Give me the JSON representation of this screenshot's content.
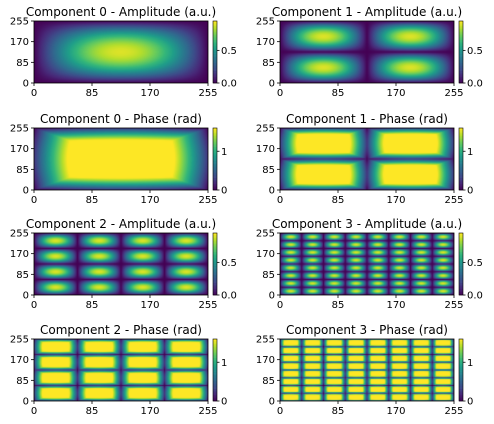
{
  "chart_data": [
    {
      "type": "heatmap",
      "title": "Component 0 - Amplitude (a.u.)",
      "pattern": {
        "kind": "amplitude",
        "n": 0
      },
      "x_ticks": [
        "0",
        "85",
        "170",
        "255"
      ],
      "y_ticks": [
        "0",
        "85",
        "170",
        "255"
      ],
      "xlim": [
        0,
        255
      ],
      "ylim": [
        0,
        255
      ],
      "colormap": "viridis",
      "colorbar": {
        "range": [
          0,
          0.95
        ],
        "ticks": [
          {
            "value": 0,
            "label": "0.0"
          },
          {
            "value": 0.5,
            "label": "0.5"
          }
        ]
      }
    },
    {
      "type": "heatmap",
      "title": "Component 1 - Amplitude (a.u.)",
      "pattern": {
        "kind": "amplitude",
        "n": 1
      },
      "x_ticks": [
        "0",
        "85",
        "170",
        "255"
      ],
      "y_ticks": [
        "0",
        "85",
        "170",
        "255"
      ],
      "xlim": [
        0,
        255
      ],
      "ylim": [
        0,
        255
      ],
      "colormap": "viridis",
      "colorbar": {
        "range": [
          0,
          0.95
        ],
        "ticks": [
          {
            "value": 0,
            "label": "0.0"
          },
          {
            "value": 0.5,
            "label": "0.5"
          }
        ]
      }
    },
    {
      "type": "heatmap",
      "title": "Component 0 - Phase (rad)",
      "pattern": {
        "kind": "phase",
        "n": 0
      },
      "x_ticks": [
        "0",
        "85",
        "170",
        "255"
      ],
      "y_ticks": [
        "0",
        "85",
        "170",
        "255"
      ],
      "xlim": [
        0,
        255
      ],
      "ylim": [
        0,
        255
      ],
      "colormap": "viridis",
      "colorbar": {
        "range": [
          0,
          1.6
        ],
        "ticks": [
          {
            "value": 0,
            "label": "0"
          },
          {
            "value": 1,
            "label": "1"
          }
        ]
      }
    },
    {
      "type": "heatmap",
      "title": "Component 1 - Phase (rad)",
      "pattern": {
        "kind": "phase",
        "n": 1
      },
      "x_ticks": [
        "0",
        "85",
        "170",
        "255"
      ],
      "y_ticks": [
        "0",
        "85",
        "170",
        "255"
      ],
      "xlim": [
        0,
        255
      ],
      "ylim": [
        0,
        255
      ],
      "colormap": "viridis",
      "colorbar": {
        "range": [
          0,
          1.6
        ],
        "ticks": [
          {
            "value": 0,
            "label": "0"
          },
          {
            "value": 1,
            "label": "1"
          }
        ]
      }
    },
    {
      "type": "heatmap",
      "title": "Component 2 - Amplitude (a.u.)",
      "pattern": {
        "kind": "amplitude",
        "n": 2
      },
      "x_ticks": [
        "0",
        "85",
        "170",
        "255"
      ],
      "y_ticks": [
        "0",
        "85",
        "170",
        "255"
      ],
      "xlim": [
        0,
        255
      ],
      "ylim": [
        0,
        255
      ],
      "colormap": "viridis",
      "colorbar": {
        "range": [
          0,
          0.95
        ],
        "ticks": [
          {
            "value": 0,
            "label": "0.0"
          },
          {
            "value": 0.5,
            "label": "0.5"
          }
        ]
      }
    },
    {
      "type": "heatmap",
      "title": "Component 3 - Amplitude (a.u.)",
      "pattern": {
        "kind": "amplitude",
        "n": 3
      },
      "x_ticks": [
        "0",
        "85",
        "170",
        "255"
      ],
      "y_ticks": [
        "0",
        "85",
        "170",
        "255"
      ],
      "xlim": [
        0,
        255
      ],
      "ylim": [
        0,
        255
      ],
      "colormap": "viridis",
      "colorbar": {
        "range": [
          0,
          0.95
        ],
        "ticks": [
          {
            "value": 0,
            "label": "0.0"
          },
          {
            "value": 0.5,
            "label": "0.5"
          }
        ]
      }
    },
    {
      "type": "heatmap",
      "title": "Component 2 - Phase (rad)",
      "pattern": {
        "kind": "phase",
        "n": 2
      },
      "x_ticks": [
        "0",
        "85",
        "170",
        "255"
      ],
      "y_ticks": [
        "0",
        "85",
        "170",
        "255"
      ],
      "xlim": [
        0,
        255
      ],
      "ylim": [
        0,
        255
      ],
      "colormap": "viridis",
      "colorbar": {
        "range": [
          0,
          1.6
        ],
        "ticks": [
          {
            "value": 0,
            "label": "0"
          },
          {
            "value": 1,
            "label": "1"
          }
        ]
      }
    },
    {
      "type": "heatmap",
      "title": "Component 3 - Phase (rad)",
      "pattern": {
        "kind": "phase",
        "n": 3
      },
      "x_ticks": [
        "0",
        "85",
        "170",
        "255"
      ],
      "y_ticks": [
        "0",
        "85",
        "170",
        "255"
      ],
      "xlim": [
        0,
        255
      ],
      "ylim": [
        0,
        255
      ],
      "colormap": "viridis",
      "colorbar": {
        "range": [
          0,
          1.6
        ],
        "ticks": [
          {
            "value": 0,
            "label": "0"
          },
          {
            "value": 1,
            "label": "1"
          }
        ]
      }
    }
  ]
}
